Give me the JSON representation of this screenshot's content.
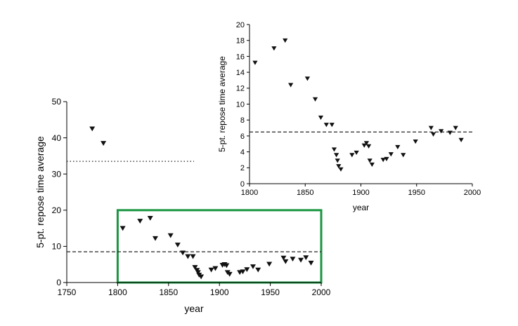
{
  "chart_data": [
    {
      "type": "scatter",
      "xlabel": "year",
      "ylabel": "5-pt. repose time average",
      "xlim": [
        1750,
        2000
      ],
      "ylim": [
        0,
        50
      ],
      "xticks": [
        "1750",
        "1800",
        "1850",
        "1900",
        "1950",
        "2000"
      ],
      "yticks": [
        "0",
        "10",
        "20",
        "30",
        "40",
        "50"
      ],
      "marker": "down-triangle",
      "grid": false,
      "reference_lines": [
        {
          "style": "dotted",
          "y": 33.5,
          "x_range": [
            1750,
            1875
          ]
        },
        {
          "style": "dashed",
          "y": 8.5,
          "x_range": [
            1750,
            2000
          ]
        }
      ],
      "highlight_box": {
        "x_range": [
          1800,
          2000
        ],
        "y_range": [
          0,
          20
        ],
        "color": "#1a9641"
      },
      "points": [
        [
          1775,
          42.5
        ],
        [
          1786,
          38.5
        ],
        [
          1805,
          15.0
        ],
        [
          1822,
          17.0
        ],
        [
          1832,
          17.8
        ],
        [
          1837,
          12.2
        ],
        [
          1852,
          13.0
        ],
        [
          1859,
          10.4
        ],
        [
          1864,
          8.2
        ],
        [
          1869,
          7.2
        ],
        [
          1874,
          7.2
        ],
        [
          1876,
          4.2
        ],
        [
          1878,
          3.4
        ],
        [
          1879,
          2.8
        ],
        [
          1880,
          2.1
        ],
        [
          1882,
          1.6
        ],
        [
          1892,
          3.5
        ],
        [
          1896,
          3.9
        ],
        [
          1903,
          4.8
        ],
        [
          1905,
          5.0
        ],
        [
          1907,
          4.7
        ],
        [
          1908,
          2.8
        ],
        [
          1910,
          2.3
        ],
        [
          1920,
          2.8
        ],
        [
          1923,
          3.0
        ],
        [
          1927,
          3.6
        ],
        [
          1933,
          4.4
        ],
        [
          1938,
          3.5
        ],
        [
          1949,
          5.1
        ],
        [
          1963,
          6.8
        ],
        [
          1965,
          5.8
        ],
        [
          1972,
          6.5
        ],
        [
          1980,
          6.2
        ],
        [
          1985,
          6.9
        ],
        [
          1990,
          5.4
        ]
      ]
    },
    {
      "type": "scatter",
      "xlabel": "year",
      "ylabel": "5-pt. repose time average",
      "xlim": [
        1800,
        2000
      ],
      "ylim": [
        0,
        20
      ],
      "xticks": [
        "1800",
        "1850",
        "1900",
        "1950",
        "2000"
      ],
      "yticks": [
        "0",
        "2",
        "4",
        "6",
        "8",
        "10",
        "12",
        "14",
        "16",
        "18",
        "20"
      ],
      "marker": "down-triangle",
      "grid": false,
      "reference_lines": [
        {
          "style": "dashed",
          "y": 6.5,
          "x_range": [
            1800,
            2000
          ]
        }
      ],
      "points": [
        [
          1805,
          15.2
        ],
        [
          1822,
          17.0
        ],
        [
          1832,
          18.0
        ],
        [
          1837,
          12.4
        ],
        [
          1852,
          13.2
        ],
        [
          1859,
          10.6
        ],
        [
          1864,
          8.3
        ],
        [
          1869,
          7.4
        ],
        [
          1874,
          7.4
        ],
        [
          1876,
          4.3
        ],
        [
          1878,
          3.6
        ],
        [
          1879,
          2.9
        ],
        [
          1880,
          2.2
        ],
        [
          1882,
          1.8
        ],
        [
          1892,
          3.6
        ],
        [
          1896,
          3.9
        ],
        [
          1903,
          4.8
        ],
        [
          1905,
          5.1
        ],
        [
          1907,
          4.7
        ],
        [
          1908,
          2.9
        ],
        [
          1910,
          2.4
        ],
        [
          1920,
          3.0
        ],
        [
          1923,
          3.1
        ],
        [
          1927,
          3.7
        ],
        [
          1933,
          4.6
        ],
        [
          1938,
          3.6
        ],
        [
          1949,
          5.3
        ],
        [
          1963,
          7.0
        ],
        [
          1965,
          6.2
        ],
        [
          1972,
          6.6
        ],
        [
          1980,
          6.4
        ],
        [
          1985,
          7.0
        ],
        [
          1990,
          5.5
        ]
      ]
    }
  ]
}
